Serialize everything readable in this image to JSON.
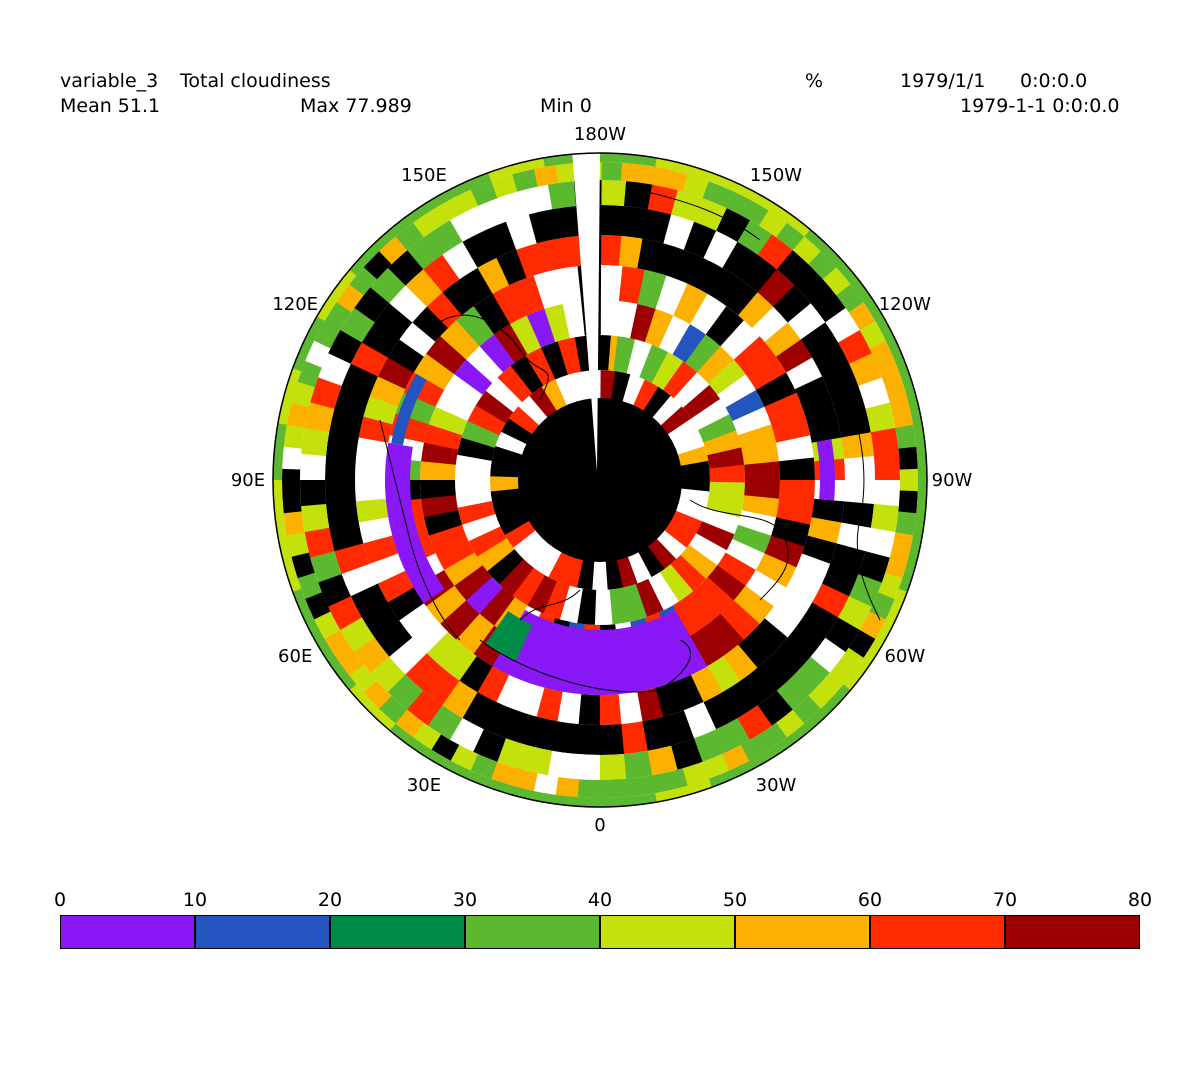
{
  "header": {
    "variable": "variable_3",
    "long_name": "Total cloudiness",
    "units": "%",
    "date": "1979/1/1",
    "time": "0:0:0.0",
    "datetime2": "1979-1-1 0:0:0.0",
    "mean": "Mean 51.1",
    "max": "Max 77.989",
    "min": "Min 0"
  },
  "map": {
    "projection": "polar stereographic (south pole centered)",
    "longitude_labels": [
      "180W",
      "150W",
      "120W",
      "90W",
      "60W",
      "30W",
      "0",
      "30E",
      "60E",
      "90E",
      "120E",
      "150E"
    ],
    "missing_color": "#000000",
    "coastline_color": "#000000"
  },
  "colorbar": {
    "ticks": [
      "0",
      "10",
      "20",
      "30",
      "40",
      "50",
      "60",
      "70",
      "80"
    ],
    "colors": [
      "#8a17f5",
      "#2454c0",
      "#008c46",
      "#5cb82e",
      "#c4e10c",
      "#fcb100",
      "#ff2a00",
      "#9c0000"
    ]
  }
}
